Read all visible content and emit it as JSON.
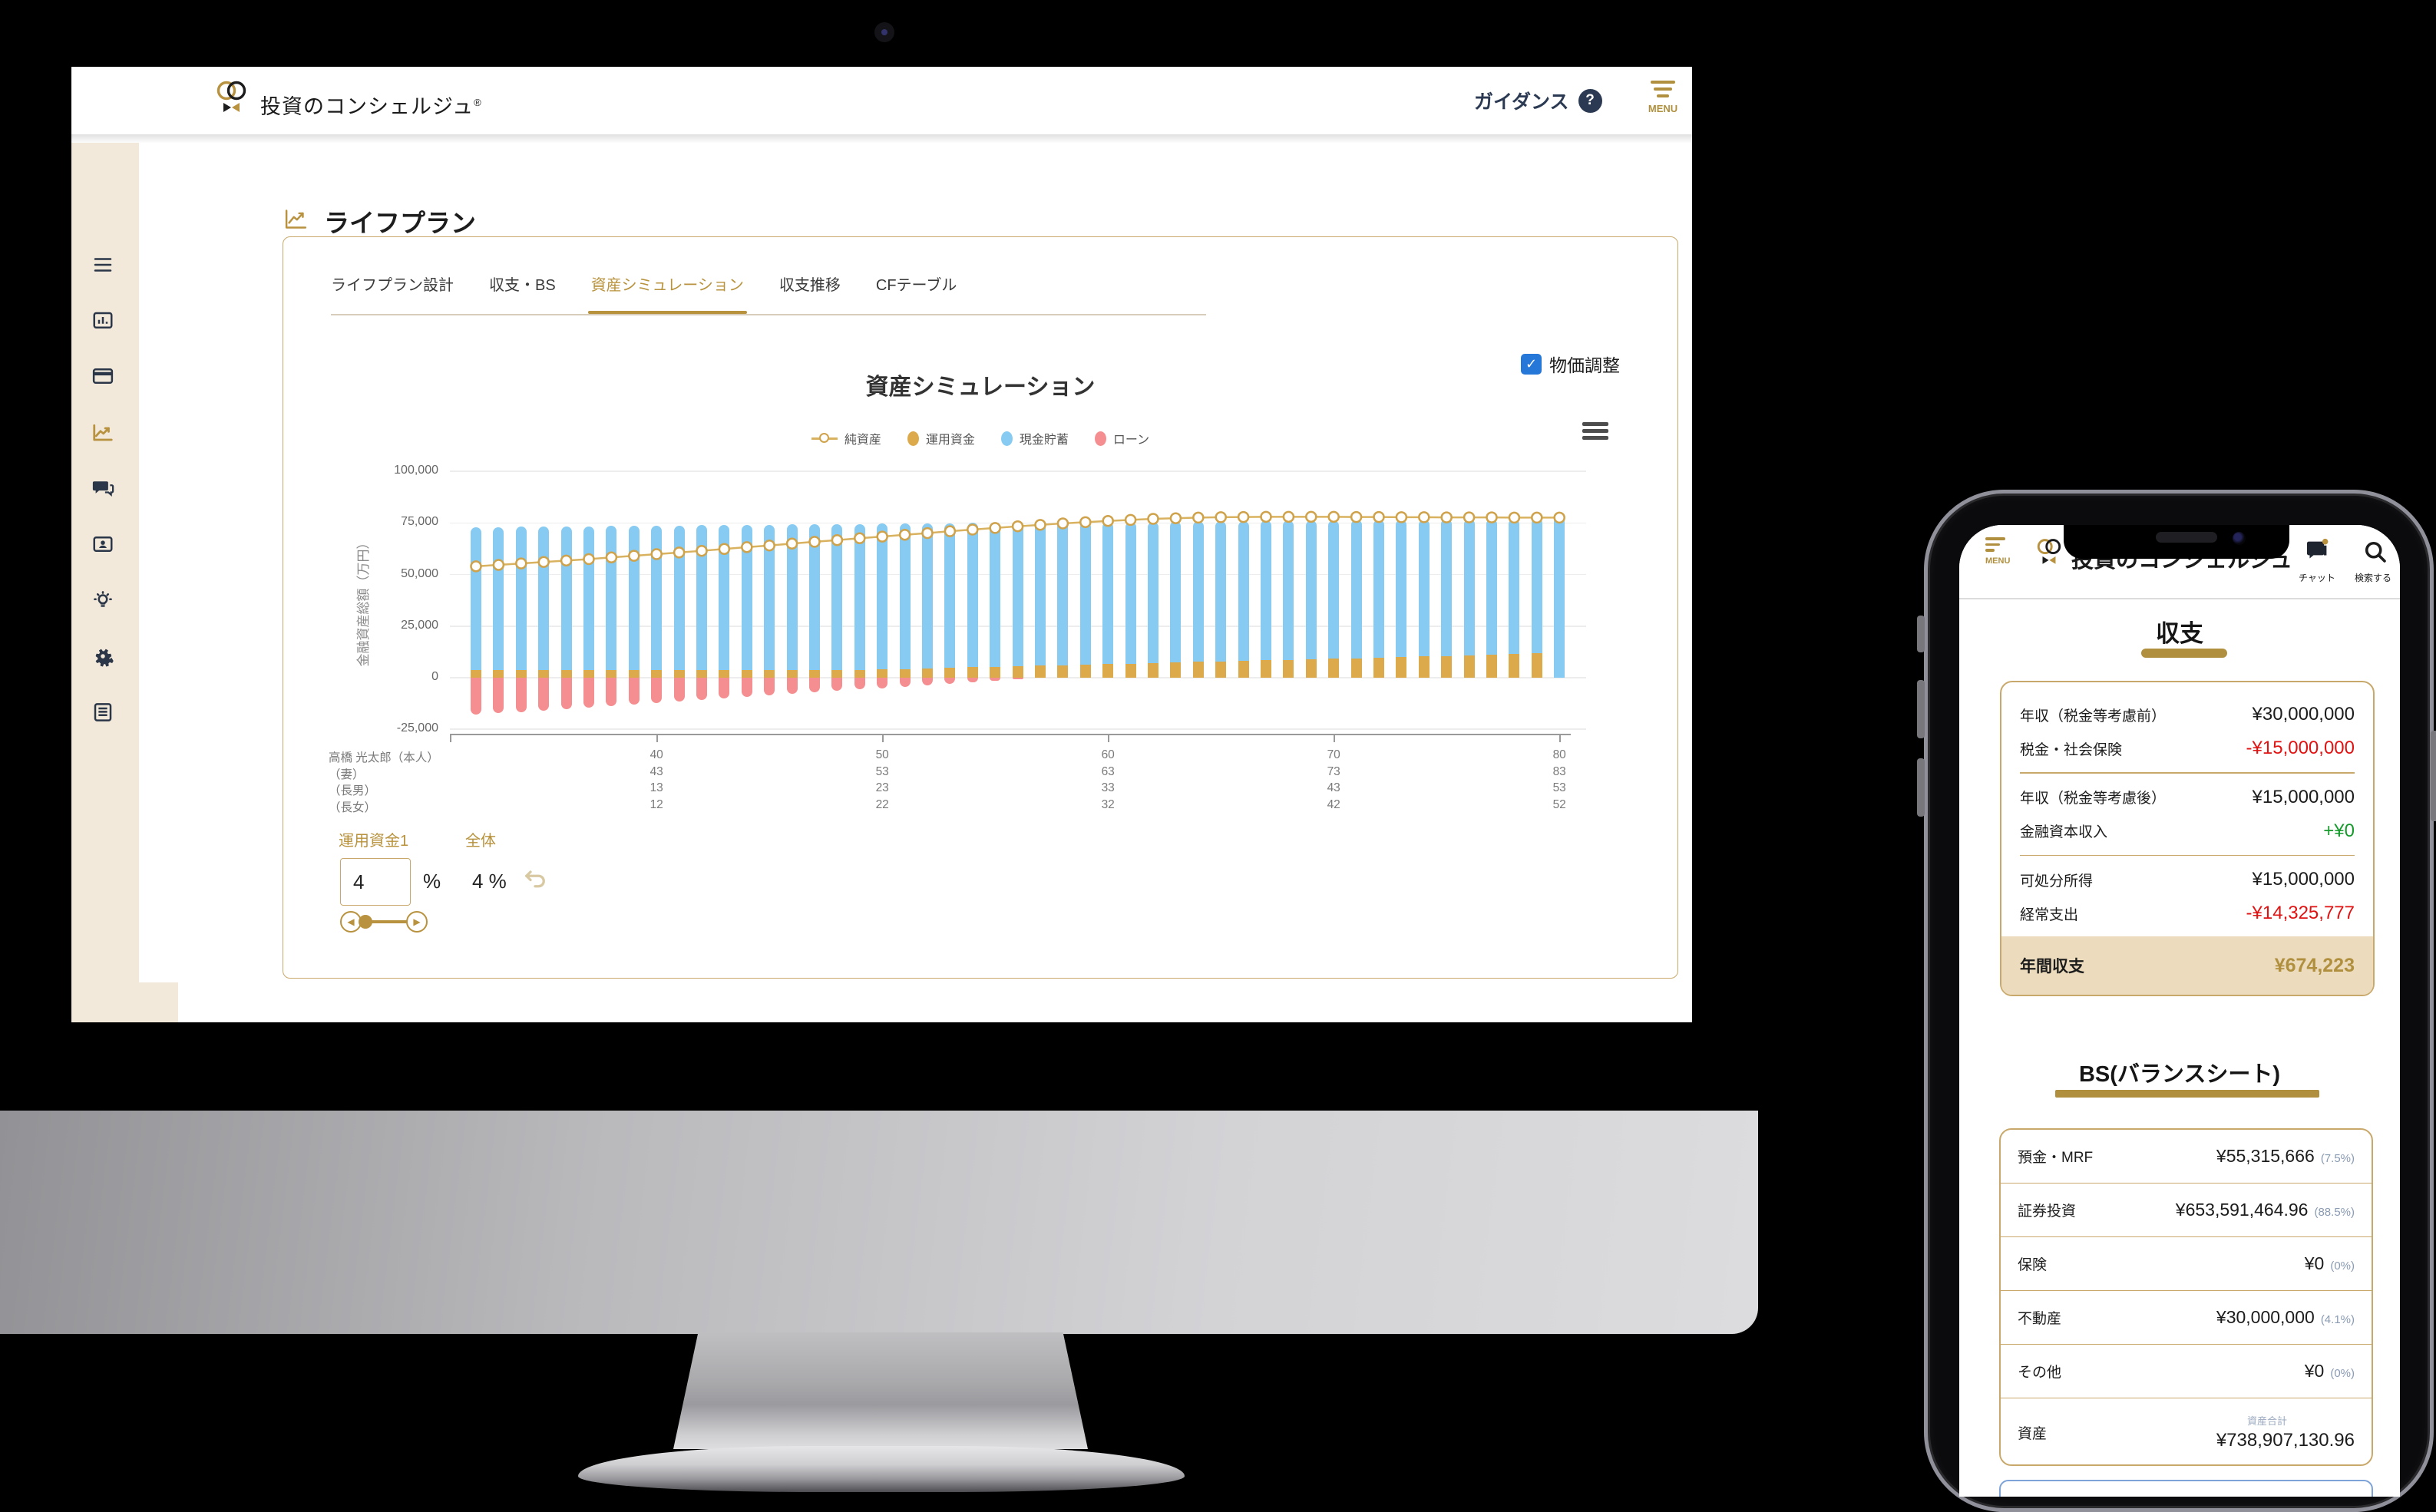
{
  "desktop": {
    "header": {
      "brand": "投資のコンシェルジュ",
      "registered_mark": "®",
      "guidance_label": "ガイダンス",
      "menu_label": "MENU"
    },
    "sidebar": {
      "icons": [
        "menu",
        "dashboard",
        "credit-card",
        "trend",
        "chat",
        "profile-card",
        "idea",
        "settings",
        "document"
      ]
    },
    "page_title": "ライフプラン",
    "tabs": [
      {
        "label": "ライフプラン設計",
        "active": false
      },
      {
        "label": "収支・BS",
        "active": false
      },
      {
        "label": "資産シミュレーション",
        "active": true
      },
      {
        "label": "収支推移",
        "active": false
      },
      {
        "label": "CFテーブル",
        "active": false
      }
    ],
    "price_adjust_label": "物価調整",
    "controls": {
      "fund_label": "運用資金1",
      "overall_label": "全体",
      "fund_rate_value": "4",
      "percent_sign": "%",
      "overall_rate_text": "4 %"
    }
  },
  "chart_data": {
    "type": "bar",
    "title": "資産シミュレーション",
    "ylabel": "金融資産総額（万円）",
    "ylim": [
      -25000,
      100000
    ],
    "grid": true,
    "legend_position": "top",
    "yticks": [
      {
        "value": 100000,
        "label": "100,000"
      },
      {
        "value": 75000,
        "label": "75,000"
      },
      {
        "value": 50000,
        "label": "50,000"
      },
      {
        "value": 25000,
        "label": "25,000"
      },
      {
        "value": 0,
        "label": "0"
      },
      {
        "value": -25000,
        "label": "-25,000"
      }
    ],
    "ages": [
      32,
      33,
      34,
      35,
      36,
      37,
      38,
      39,
      40,
      41,
      42,
      43,
      44,
      45,
      46,
      47,
      48,
      49,
      50,
      51,
      52,
      53,
      54,
      55,
      56,
      57,
      58,
      59,
      60,
      61,
      62,
      63,
      64,
      65,
      66,
      67,
      68,
      69,
      70,
      71,
      72,
      73,
      74,
      75,
      76,
      77,
      78,
      79,
      80
    ],
    "x_ticks": [
      40,
      50,
      60,
      70,
      80
    ],
    "x_rows": [
      {
        "label": "高橋 光太郎（本人）",
        "values": [
          40,
          50,
          60,
          70,
          80
        ]
      },
      {
        "label": "（妻）",
        "values": [
          43,
          53,
          63,
          73,
          83
        ]
      },
      {
        "label": "（長男）",
        "values": [
          13,
          23,
          33,
          43,
          53
        ]
      },
      {
        "label": "（長女）",
        "values": [
          12,
          22,
          32,
          42,
          52
        ]
      }
    ],
    "series": [
      {
        "name": "純資産",
        "type": "line",
        "color": "#d9b25f",
        "values": [
          54000,
          54700,
          55400,
          56100,
          56800,
          57500,
          58300,
          59100,
          59900,
          60700,
          61500,
          62400,
          63300,
          64100,
          65000,
          65900,
          66700,
          67600,
          68400,
          69300,
          70100,
          71000,
          71800,
          72600,
          73400,
          74100,
          74800,
          75400,
          76000,
          76500,
          77000,
          77300,
          77600,
          77800,
          77900,
          78000,
          78000,
          78000,
          78000,
          77900,
          77900,
          77800,
          77800,
          77700,
          77700,
          77700,
          77600,
          77600,
          77600
        ]
      },
      {
        "name": "運用資金",
        "type": "bar",
        "color": "#dcaa4b",
        "values": [
          3600,
          3600,
          3600,
          3600,
          3600,
          3600,
          3600,
          3600,
          3600,
          3600,
          3600,
          3600,
          3600,
          3600,
          3600,
          3600,
          3600,
          3600,
          4000,
          4260,
          4520,
          4780,
          5040,
          5300,
          5560,
          5820,
          6080,
          6340,
          6600,
          6860,
          7120,
          7380,
          7640,
          7900,
          8160,
          8420,
          8680,
          8940,
          9200,
          9460,
          9720,
          9980,
          10240,
          10500,
          10760,
          11100,
          11500,
          11900,
          0
        ]
      },
      {
        "name": "現金貯蓄",
        "type": "bar",
        "color": "#87cbf2",
        "values": [
          69400,
          69490,
          69580,
          69670,
          69760,
          69850,
          69940,
          70030,
          70120,
          70210,
          70300,
          70390,
          70480,
          70570,
          70660,
          70750,
          70840,
          70930,
          70620,
          70450,
          70280,
          70110,
          69940,
          69770,
          69600,
          69430,
          69260,
          69090,
          68920,
          68750,
          68580,
          68410,
          68240,
          68070,
          67900,
          67730,
          67560,
          67390,
          67220,
          67050,
          66880,
          66710,
          66540,
          66370,
          66200,
          65950,
          65640,
          65330,
          78000
        ]
      },
      {
        "name": "ローン",
        "type": "bar",
        "color": "#f58e90",
        "values": [
          -18000,
          -17280,
          -16560,
          -15840,
          -15120,
          -14400,
          -13680,
          -12960,
          -12240,
          -11520,
          -10800,
          -10080,
          -9360,
          -8640,
          -7920,
          -7200,
          -6480,
          -5760,
          -5040,
          -4320,
          -3600,
          -2880,
          -2160,
          -1440,
          -720,
          0,
          0,
          0,
          0,
          0,
          0,
          0,
          0,
          0,
          0,
          0,
          0,
          0,
          0,
          0,
          0,
          0,
          0,
          0,
          0,
          0,
          0,
          0,
          0
        ]
      }
    ]
  },
  "phone": {
    "header": {
      "menu_label": "MENU",
      "brand": "投資のコンシェルジュ",
      "chat_label": "チャット",
      "search_label": "検索する"
    },
    "income": {
      "title": "収支",
      "groups": [
        [
          {
            "label": "年収（税金等考慮前）",
            "value": "¥30,000,000"
          },
          {
            "label": "税金・社会保険",
            "value": "-¥15,000,000"
          }
        ],
        [
          {
            "label": "年収（税金等考慮後）",
            "value": "¥15,000,000"
          },
          {
            "label": "金融資本収入",
            "value": "+¥0"
          }
        ],
        [
          {
            "label": "可処分所得",
            "value": "¥15,000,000"
          },
          {
            "label": "経常支出",
            "value": "-¥14,325,777"
          }
        ]
      ],
      "total": {
        "label": "年間収支",
        "value": "¥674,223"
      }
    },
    "bs": {
      "title": "BS(バランスシート)",
      "rows": [
        {
          "label": "預金・MRF",
          "value": "¥55,315,666",
          "pct": "(7.5%)"
        },
        {
          "label": "証券投資",
          "value": "¥653,591,464.96",
          "pct": "(88.5%)"
        },
        {
          "label": "保険",
          "value": "¥0",
          "pct": "(0%)"
        },
        {
          "label": "不動産",
          "value": "¥30,000,000",
          "pct": "(4.1%)"
        },
        {
          "label": "その他",
          "value": "¥0",
          "pct": "(0%)"
        }
      ],
      "total": {
        "label": "資産",
        "sublabel": "資産合計",
        "value": "¥738,907,130.96"
      }
    }
  },
  "colors": {
    "accent_gold": "#b0903f",
    "gold_border": "#c9a96b",
    "navy": "#2b3648",
    "chart_blue": "#87cbf2",
    "chart_gold": "#dcaa4b",
    "chart_red": "#f58e90",
    "line_gold": "#d9b25f",
    "checkbox_blue": "#2678d8",
    "negative_red": "#e01212",
    "positive_green": "#169a2c",
    "percent_gray": "#8a9bb3",
    "highlight_tan": "#ecdcbd",
    "sidebar_beige": "#f2e9da"
  }
}
